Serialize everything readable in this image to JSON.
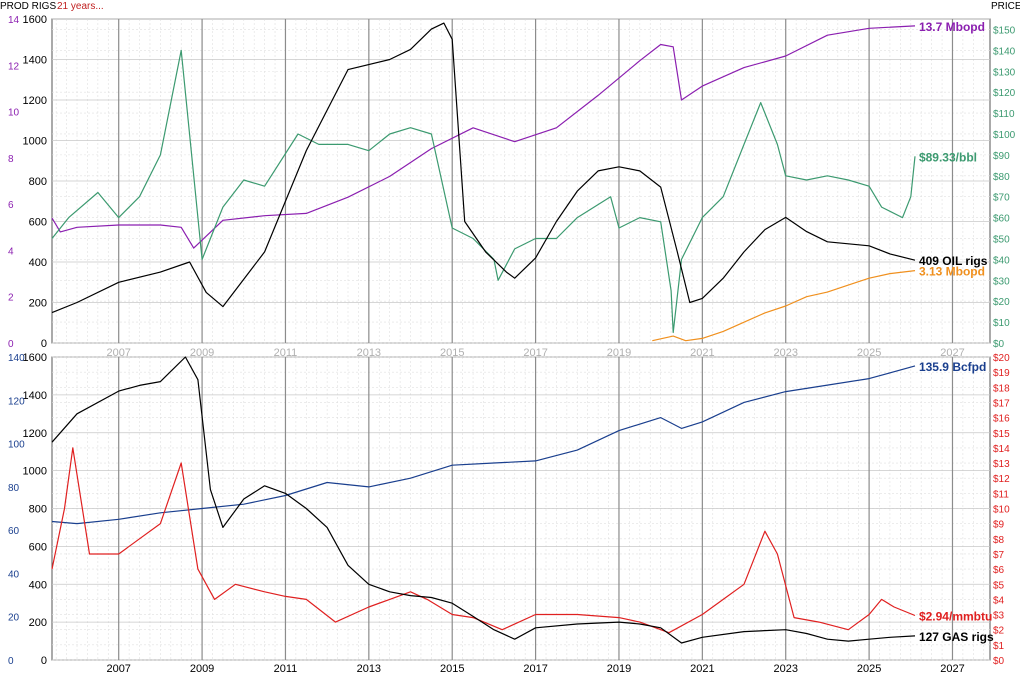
{
  "header": {
    "prod_rigs": "PROD RIGS",
    "span": "21 years...",
    "price": "PRICE"
  },
  "colors": {
    "oil_prod": "#8b1fb0",
    "oil_price": "#3c9a70",
    "rigs": "#000000",
    "addl": "#f0901e",
    "gas_prod": "#1a3f8e",
    "gas_price": "#e02020",
    "grid_major": "#8c8c8c",
    "grid_minor": "#e0e0e0"
  },
  "years": [
    "2007",
    "2009",
    "2011",
    "2013",
    "2015",
    "2017",
    "2019",
    "2021",
    "2023",
    "2025",
    "2027"
  ],
  "chart_data": [
    {
      "type": "line",
      "panel": "oil",
      "x_range": [
        2005.4,
        2027.9
      ],
      "left_rigs_axis": {
        "ticks": [
          "0",
          "200",
          "400",
          "600",
          "800",
          "1000",
          "1200",
          "1400",
          "1600"
        ],
        "ylim": [
          0,
          1600
        ]
      },
      "left_prod_axis": {
        "ticks": [
          "0",
          "2",
          "4",
          "6",
          "8",
          "10",
          "12",
          "14"
        ],
        "ylim": [
          0,
          14
        ]
      },
      "right_price_axis": {
        "ticks": [
          "$0",
          "$10",
          "$20",
          "$30",
          "$40",
          "$50",
          "$60",
          "$70",
          "$80",
          "$90",
          "$100",
          "$110",
          "$120",
          "$130",
          "$140",
          "$150"
        ],
        "ylim": [
          0,
          155
        ]
      },
      "series": [
        {
          "label": "13.7 Mbopd",
          "axis": "prod",
          "colorKey": "oil_prod",
          "x": [
            2005.4,
            2005.6,
            2006.0,
            2007.0,
            2008.0,
            2008.5,
            2008.8,
            2009.5,
            2010.5,
            2011.5,
            2012.5,
            2013.5,
            2014.5,
            2015.5,
            2016.5,
            2017.5,
            2018.5,
            2019.5,
            2020.0,
            2020.3,
            2020.5,
            2021.0,
            2022.0,
            2023.0,
            2024.0,
            2025.0,
            2026.1
          ],
          "y": [
            5.4,
            4.8,
            5.0,
            5.1,
            5.1,
            5.0,
            4.1,
            5.3,
            5.5,
            5.6,
            6.3,
            7.2,
            8.4,
            9.3,
            8.7,
            9.3,
            10.7,
            12.2,
            12.9,
            12.8,
            10.5,
            11.1,
            11.9,
            12.4,
            13.3,
            13.6,
            13.7
          ]
        },
        {
          "label": "$89.33/bbl",
          "axis": "price",
          "colorKey": "oil_price",
          "x": [
            2005.4,
            2005.8,
            2006.5,
            2007.0,
            2007.5,
            2008.0,
            2008.5,
            2008.9,
            2009.0,
            2009.5,
            2010.0,
            2010.5,
            2011.3,
            2011.8,
            2012.5,
            2013.0,
            2013.5,
            2014.0,
            2014.5,
            2015.0,
            2015.5,
            2016.0,
            2016.1,
            2016.5,
            2017.0,
            2017.5,
            2018.0,
            2018.8,
            2019.0,
            2019.5,
            2020.0,
            2020.25,
            2020.3,
            2020.5,
            2021.0,
            2021.5,
            2022.0,
            2022.4,
            2022.8,
            2023.0,
            2023.5,
            2024.0,
            2024.5,
            2025.0,
            2025.3,
            2025.8,
            2026.0,
            2026.1
          ],
          "y": [
            50,
            60,
            72,
            60,
            70,
            90,
            140,
            60,
            40,
            65,
            78,
            75,
            100,
            95,
            95,
            92,
            100,
            103,
            100,
            55,
            50,
            40,
            30,
            45,
            50,
            50,
            60,
            70,
            55,
            60,
            58,
            25,
            5,
            40,
            60,
            70,
            95,
            115,
            95,
            80,
            78,
            80,
            78,
            75,
            65,
            60,
            70,
            89.33
          ]
        },
        {
          "label": "409 OIL rigs",
          "axis": "rigs",
          "colorKey": "rigs",
          "x": [
            2005.4,
            2006.0,
            2007.0,
            2008.0,
            2008.7,
            2009.1,
            2009.5,
            2010.5,
            2011.5,
            2012.5,
            2013.5,
            2014.0,
            2014.5,
            2014.8,
            2015.0,
            2015.3,
            2015.8,
            2016.3,
            2016.5,
            2017.0,
            2017.5,
            2018.0,
            2018.5,
            2019.0,
            2019.5,
            2020.0,
            2020.4,
            2020.7,
            2021.0,
            2021.5,
            2022.0,
            2022.5,
            2023.0,
            2023.5,
            2024.0,
            2024.5,
            2025.0,
            2025.5,
            2026.1
          ],
          "y": [
            150,
            200,
            300,
            350,
            400,
            250,
            180,
            450,
            950,
            1350,
            1400,
            1450,
            1550,
            1580,
            1500,
            600,
            450,
            350,
            320,
            420,
            600,
            750,
            850,
            870,
            850,
            770,
            450,
            200,
            220,
            320,
            450,
            560,
            620,
            550,
            500,
            490,
            480,
            440,
            409
          ]
        },
        {
          "label": "3.13 Mbopd",
          "axis": "prod",
          "colorKey": "addl",
          "x": [
            2019.8,
            2020.3,
            2020.6,
            2021.0,
            2021.5,
            2022.0,
            2022.5,
            2023.0,
            2023.5,
            2024.0,
            2024.5,
            2025.0,
            2025.5,
            2026.1
          ],
          "y": [
            0.1,
            0.3,
            0.1,
            0.2,
            0.5,
            0.9,
            1.3,
            1.6,
            2.0,
            2.2,
            2.5,
            2.8,
            3.0,
            3.13
          ]
        }
      ]
    },
    {
      "type": "line",
      "panel": "gas",
      "x_range": [
        2005.4,
        2027.9
      ],
      "left_rigs_axis": {
        "ticks": [
          "0",
          "200",
          "400",
          "600",
          "800",
          "1000",
          "1200",
          "1400",
          "1600"
        ],
        "ylim": [
          0,
          1600
        ]
      },
      "left_prod_axis": {
        "ticks": [
          "0",
          "20",
          "40",
          "60",
          "80",
          "100",
          "120",
          "140"
        ],
        "ylim": [
          0,
          140
        ]
      },
      "right_price_axis": {
        "ticks": [
          "$0",
          "$1",
          "$2",
          "$3",
          "$4",
          "$5",
          "$6",
          "$7",
          "$8",
          "$9",
          "$10",
          "$11",
          "$12",
          "$13",
          "$14",
          "$15",
          "$16",
          "$17",
          "$18",
          "$19",
          "$20"
        ],
        "ylim": [
          0,
          20
        ]
      },
      "series": [
        {
          "label": "135.9 Bcfpd",
          "axis": "prod",
          "colorKey": "gas_prod",
          "x": [
            2005.4,
            2006.0,
            2007.0,
            2008.0,
            2009.0,
            2010.0,
            2011.0,
            2012.0,
            2013.0,
            2014.0,
            2015.0,
            2016.0,
            2017.0,
            2018.0,
            2019.0,
            2020.0,
            2020.5,
            2021.0,
            2022.0,
            2023.0,
            2024.0,
            2025.0,
            2026.1
          ],
          "y": [
            64,
            63,
            65,
            68,
            70,
            72,
            76,
            82,
            80,
            84,
            90,
            91,
            92,
            97,
            106,
            112,
            107,
            110,
            119,
            124,
            127,
            130,
            135.9
          ]
        },
        {
          "label": "$2.94/mmbtu",
          "axis": "price",
          "colorKey": "gas_price",
          "x": [
            2005.4,
            2005.7,
            2005.9,
            2006.3,
            2007.0,
            2007.5,
            2008.0,
            2008.5,
            2008.9,
            2009.3,
            2009.8,
            2010.5,
            2011.0,
            2011.5,
            2012.2,
            2013.0,
            2013.5,
            2014.0,
            2014.4,
            2015.0,
            2015.5,
            2016.2,
            2017.0,
            2018.0,
            2019.0,
            2019.5,
            2020.2,
            2021.0,
            2021.5,
            2022.0,
            2022.5,
            2022.8,
            2023.2,
            2023.8,
            2024.5,
            2025.0,
            2025.3,
            2025.6,
            2026.1
          ],
          "y": [
            6,
            10,
            14,
            7,
            7,
            8,
            9,
            13,
            6,
            4,
            5,
            4.5,
            4.2,
            4,
            2.5,
            3.5,
            4,
            4.5,
            4,
            3,
            2.8,
            2,
            3,
            3,
            2.8,
            2.5,
            1.8,
            3,
            4,
            5,
            8.5,
            7,
            2.8,
            2.5,
            2,
            3,
            4,
            3.5,
            2.94
          ]
        },
        {
          "label": "127 GAS rigs",
          "axis": "rigs",
          "colorKey": "rigs",
          "x": [
            2005.4,
            2006.0,
            2007.0,
            2007.5,
            2008.0,
            2008.6,
            2008.9,
            2009.2,
            2009.5,
            2010.0,
            2010.5,
            2011.0,
            2011.5,
            2012.0,
            2012.5,
            2013.0,
            2013.5,
            2014.0,
            2014.5,
            2015.0,
            2015.5,
            2016.0,
            2016.5,
            2017.0,
            2018.0,
            2019.0,
            2019.5,
            2020.0,
            2020.5,
            2021.0,
            2022.0,
            2023.0,
            2023.5,
            2024.0,
            2024.5,
            2025.0,
            2025.5,
            2026.1
          ],
          "y": [
            1150,
            1300,
            1420,
            1450,
            1470,
            1600,
            1480,
            900,
            700,
            850,
            920,
            880,
            800,
            700,
            500,
            400,
            360,
            340,
            330,
            300,
            230,
            160,
            110,
            170,
            190,
            200,
            190,
            170,
            90,
            120,
            150,
            160,
            140,
            110,
            100,
            110,
            120,
            127
          ]
        }
      ]
    }
  ]
}
